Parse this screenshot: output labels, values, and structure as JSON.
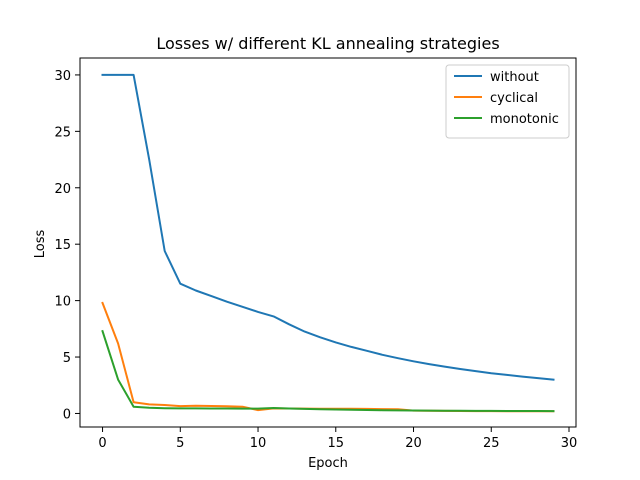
{
  "chart_data": {
    "type": "line",
    "title": "Losses w/ different KL annealing strategies",
    "xlabel": "Epoch",
    "ylabel": "Loss",
    "xlim": [
      -1.45,
      30.45
    ],
    "ylim": [
      -1.2,
      31.5
    ],
    "xticks": [
      0,
      5,
      10,
      15,
      20,
      25,
      30
    ],
    "yticks": [
      0,
      5,
      10,
      15,
      20,
      25,
      30
    ],
    "grid": false,
    "legend_position": "top-right",
    "x": [
      0,
      1,
      2,
      3,
      4,
      5,
      6,
      7,
      8,
      9,
      10,
      11,
      12,
      13,
      14,
      15,
      16,
      17,
      18,
      19,
      20,
      21,
      22,
      23,
      24,
      25,
      26,
      27,
      28,
      29
    ],
    "series": [
      {
        "name": "without",
        "color": "#1f77b4",
        "values": [
          30.0,
          30.0,
          30.0,
          22.5,
          14.4,
          11.5,
          10.9,
          10.4,
          9.9,
          9.45,
          9.0,
          8.6,
          7.9,
          7.25,
          6.75,
          6.3,
          5.9,
          5.55,
          5.2,
          4.9,
          4.62,
          4.37,
          4.15,
          3.94,
          3.75,
          3.57,
          3.42,
          3.27,
          3.13,
          3.0
        ]
      },
      {
        "name": "cyclical",
        "color": "#ff7f0e",
        "values": [
          9.8,
          6.2,
          1.0,
          0.8,
          0.75,
          0.65,
          0.68,
          0.66,
          0.63,
          0.6,
          0.3,
          0.45,
          0.44,
          0.43,
          0.42,
          0.42,
          0.41,
          0.4,
          0.39,
          0.38,
          0.25,
          0.24,
          0.23,
          0.22,
          0.21,
          0.21,
          0.2,
          0.2,
          0.19,
          0.19
        ]
      },
      {
        "name": "monotonic",
        "color": "#2ca02c",
        "values": [
          7.3,
          3.0,
          0.6,
          0.5,
          0.47,
          0.45,
          0.45,
          0.44,
          0.44,
          0.43,
          0.43,
          0.48,
          0.44,
          0.4,
          0.37,
          0.35,
          0.33,
          0.31,
          0.29,
          0.27,
          0.26,
          0.25,
          0.24,
          0.24,
          0.23,
          0.23,
          0.22,
          0.22,
          0.22,
          0.21
        ]
      }
    ]
  }
}
